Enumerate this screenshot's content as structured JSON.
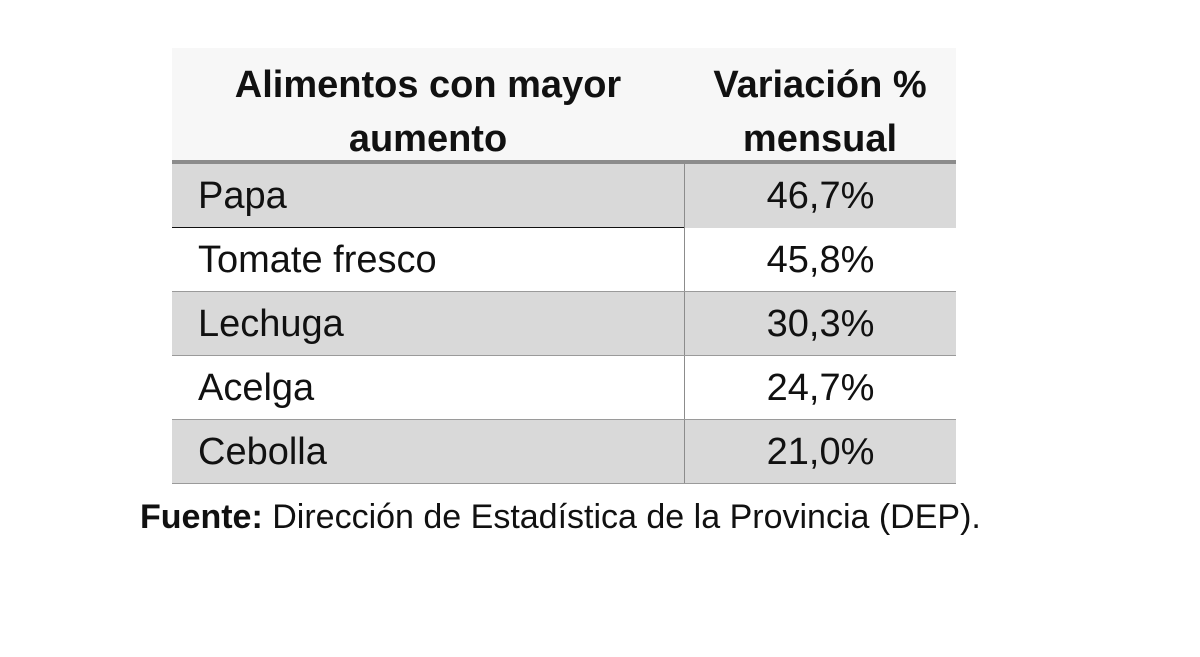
{
  "table": {
    "header": {
      "food": "Alimentos con mayor aumento",
      "variation": "Variación % mensual"
    }
  },
  "chart_data": {
    "type": "table",
    "columns": [
      "Alimentos con mayor aumento",
      "Variación % mensual"
    ],
    "rows": [
      {
        "food": "Papa",
        "value": "46,7%"
      },
      {
        "food": "Tomate fresco",
        "value": "45,8%"
      },
      {
        "food": "Lechuga",
        "value": "30,3%"
      },
      {
        "food": "Acelga",
        "value": "24,7%"
      },
      {
        "food": "Cebolla",
        "value": "21,0%"
      }
    ]
  },
  "source": {
    "label": "Fuente:",
    "text": " Dirección de Estadística de la Provincia (DEP)."
  },
  "colors": {
    "shaded_row": "#d9d9d9",
    "header_background": "#f7f7f7",
    "rule": "#8c8c8c"
  }
}
